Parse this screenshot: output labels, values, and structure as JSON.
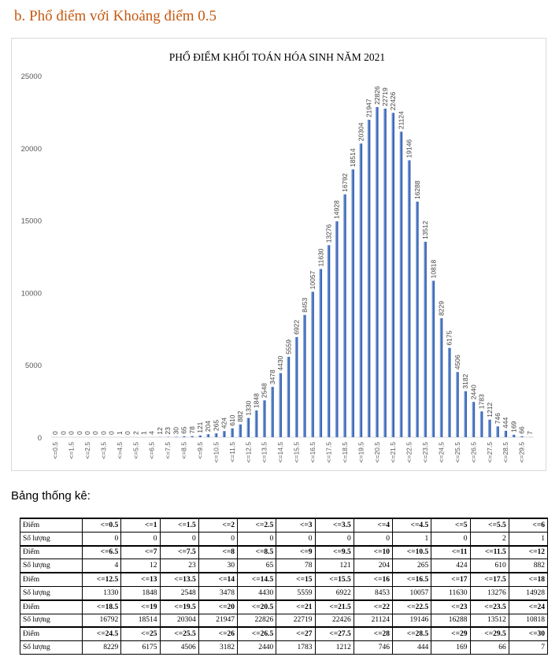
{
  "heading": "b. Phổ điểm với Khoảng điểm 0.5",
  "stats_label": "Bảng thống kê:",
  "accent_color": "#4472c4",
  "chart_data": {
    "type": "bar",
    "title": "PHỔ ĐIỂM KHỐI TOÁN HÓA SINH NĂM 2021",
    "ylim": [
      0,
      25000
    ],
    "yticks": [
      "0",
      "5000",
      "10000",
      "15000",
      "20000",
      "25000"
    ],
    "ytick_values": [
      0,
      5000,
      10000,
      15000,
      20000,
      25000
    ],
    "xticks": [
      "<=0.5",
      "<=1.5",
      "<=2.5",
      "<=3.5",
      "<=4.5",
      "<=5.5",
      "<=6.5",
      "<=7.5",
      "<=8.5",
      "<=9.5",
      "<=10.5",
      "<=11.5",
      "<=12.5",
      "<=13.5",
      "<=14.5",
      "<=15.5",
      "<=16.5",
      "<=17.5",
      "<=18.5",
      "<=19.5",
      "<=20.5",
      "<=21.5",
      "<=22.5",
      "<=23.5",
      "<=24.5",
      "<=25.5",
      "<=26.5",
      "<=27.5",
      "<=28.5",
      "<=29.5"
    ],
    "categories": [
      "<=0.5",
      "<=1",
      "<=1.5",
      "<=2",
      "<=2.5",
      "<=3",
      "<=3.5",
      "<=4",
      "<=4.5",
      "<=5",
      "<=5.5",
      "<=6",
      "<=6.5",
      "<=7",
      "<=7.5",
      "<=8",
      "<=8.5",
      "<=9",
      "<=9.5",
      "<=10",
      "<=10.5",
      "<=11",
      "<=11.5",
      "<=12",
      "<=12.5",
      "<=13",
      "<=13.5",
      "<=14",
      "<=14.5",
      "<=15",
      "<=15.5",
      "<=16",
      "<=16.5",
      "<=17",
      "<=17.5",
      "<=18",
      "<=18.5",
      "<=19",
      "<=19.5",
      "<=20",
      "<=20.5",
      "<=21",
      "<=21.5",
      "<=22",
      "<=22.5",
      "<=23",
      "<=23.5",
      "<=24",
      "<=24.5",
      "<=25",
      "<=25.5",
      "<=26",
      "<=26.5",
      "<=27",
      "<=27.5",
      "<=28",
      "<=28.5",
      "<=29",
      "<=29.5",
      "<=30"
    ],
    "values": [
      0,
      0,
      0,
      0,
      0,
      0,
      0,
      0,
      1,
      0,
      2,
      1,
      4,
      12,
      23,
      30,
      65,
      78,
      121,
      204,
      265,
      424,
      610,
      882,
      1330,
      1848,
      2548,
      3478,
      4430,
      5559,
      6922,
      8453,
      10057,
      11630,
      13276,
      14928,
      16792,
      18514,
      20304,
      21947,
      22826,
      22719,
      22426,
      21124,
      19146,
      16288,
      13512,
      10818,
      8229,
      6175,
      4506,
      3182,
      2440,
      1783,
      1212,
      746,
      444,
      169,
      66,
      7
    ],
    "xlabel": "",
    "ylabel": ""
  },
  "table": {
    "label_diem": "Điểm",
    "label_count": "Số lượng",
    "rows": [
      {
        "scores": [
          "<=0.5",
          "<=1",
          "<=1.5",
          "<=2",
          "<=2.5",
          "<=3",
          "<=3.5",
          "<=4",
          "<=4.5",
          "<=5",
          "<=5.5",
          "<=6"
        ],
        "counts": [
          "0",
          "0",
          "0",
          "0",
          "0",
          "0",
          "0",
          "0",
          "1",
          "0",
          "2",
          "1"
        ]
      },
      {
        "scores": [
          "<=6.5",
          "<=7",
          "<=7.5",
          "<=8",
          "<=8.5",
          "<=9",
          "<=9.5",
          "<=10",
          "<=10.5",
          "<=11",
          "<=11.5",
          "<=12"
        ],
        "counts": [
          "4",
          "12",
          "23",
          "30",
          "65",
          "78",
          "121",
          "204",
          "265",
          "424",
          "610",
          "882"
        ]
      },
      {
        "scores": [
          "<=12.5",
          "<=13",
          "<=13.5",
          "<=14",
          "<=14.5",
          "<=15",
          "<=15.5",
          "<=16",
          "<=16.5",
          "<=17",
          "<=17.5",
          "<=18"
        ],
        "counts": [
          "1330",
          "1848",
          "2548",
          "3478",
          "4430",
          "5559",
          "6922",
          "8453",
          "10057",
          "11630",
          "13276",
          "14928"
        ]
      },
      {
        "scores": [
          "<=18.5",
          "<=19",
          "<=19.5",
          "<=20",
          "<=20.5",
          "<=21",
          "<=21.5",
          "<=22",
          "<=22.5",
          "<=23",
          "<=23.5",
          "<=24"
        ],
        "counts": [
          "16792",
          "18514",
          "20304",
          "21947",
          "22826",
          "22719",
          "22426",
          "21124",
          "19146",
          "16288",
          "13512",
          "10818"
        ]
      },
      {
        "scores": [
          "<=24.5",
          "<=25",
          "<=25.5",
          "<=26",
          "<=26.5",
          "<=27",
          "<=27.5",
          "<=28",
          "<=28.5",
          "<=29",
          "<=29.5",
          "<=30"
        ],
        "counts": [
          "8229",
          "6175",
          "4506",
          "3182",
          "2440",
          "1783",
          "1212",
          "746",
          "444",
          "169",
          "66",
          "7"
        ]
      }
    ]
  }
}
